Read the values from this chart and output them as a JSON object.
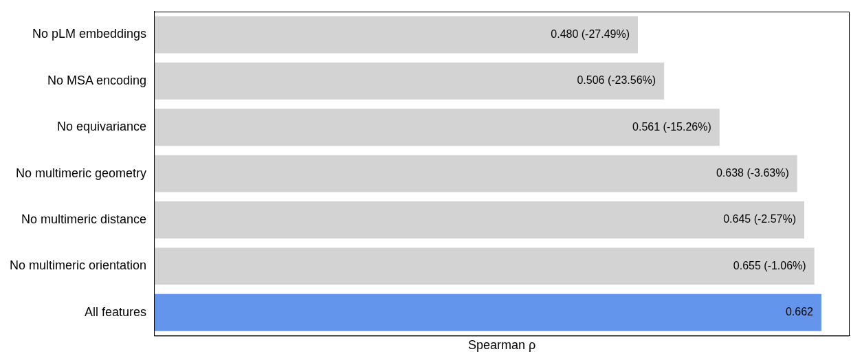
{
  "chart_data": {
    "type": "bar",
    "orientation": "horizontal",
    "xlabel": "Spearman ρ",
    "categories": [
      "No pLM embeddings",
      "No MSA encoding",
      "No equivariance",
      "No multimeric geometry",
      "No multimeric distance",
      "No multimeric orientation",
      "All features"
    ],
    "values": [
      0.48,
      0.506,
      0.561,
      0.638,
      0.645,
      0.655,
      0.662
    ],
    "colors": [
      "#d3d3d3",
      "#d3d3d3",
      "#d3d3d3",
      "#d3d3d3",
      "#d3d3d3",
      "#d3d3d3",
      "#6495ed"
    ],
    "value_labels": [
      "0.480 (-27.49%)",
      "0.506 (-23.56%)",
      "0.561 (-15.26%)",
      "0.638 (-3.63%)",
      "0.645 (-2.57%)",
      "0.655 (-1.06%)",
      "0.662"
    ],
    "xlim": [
      0,
      0.69
    ],
    "grid": false,
    "legend": false
  }
}
